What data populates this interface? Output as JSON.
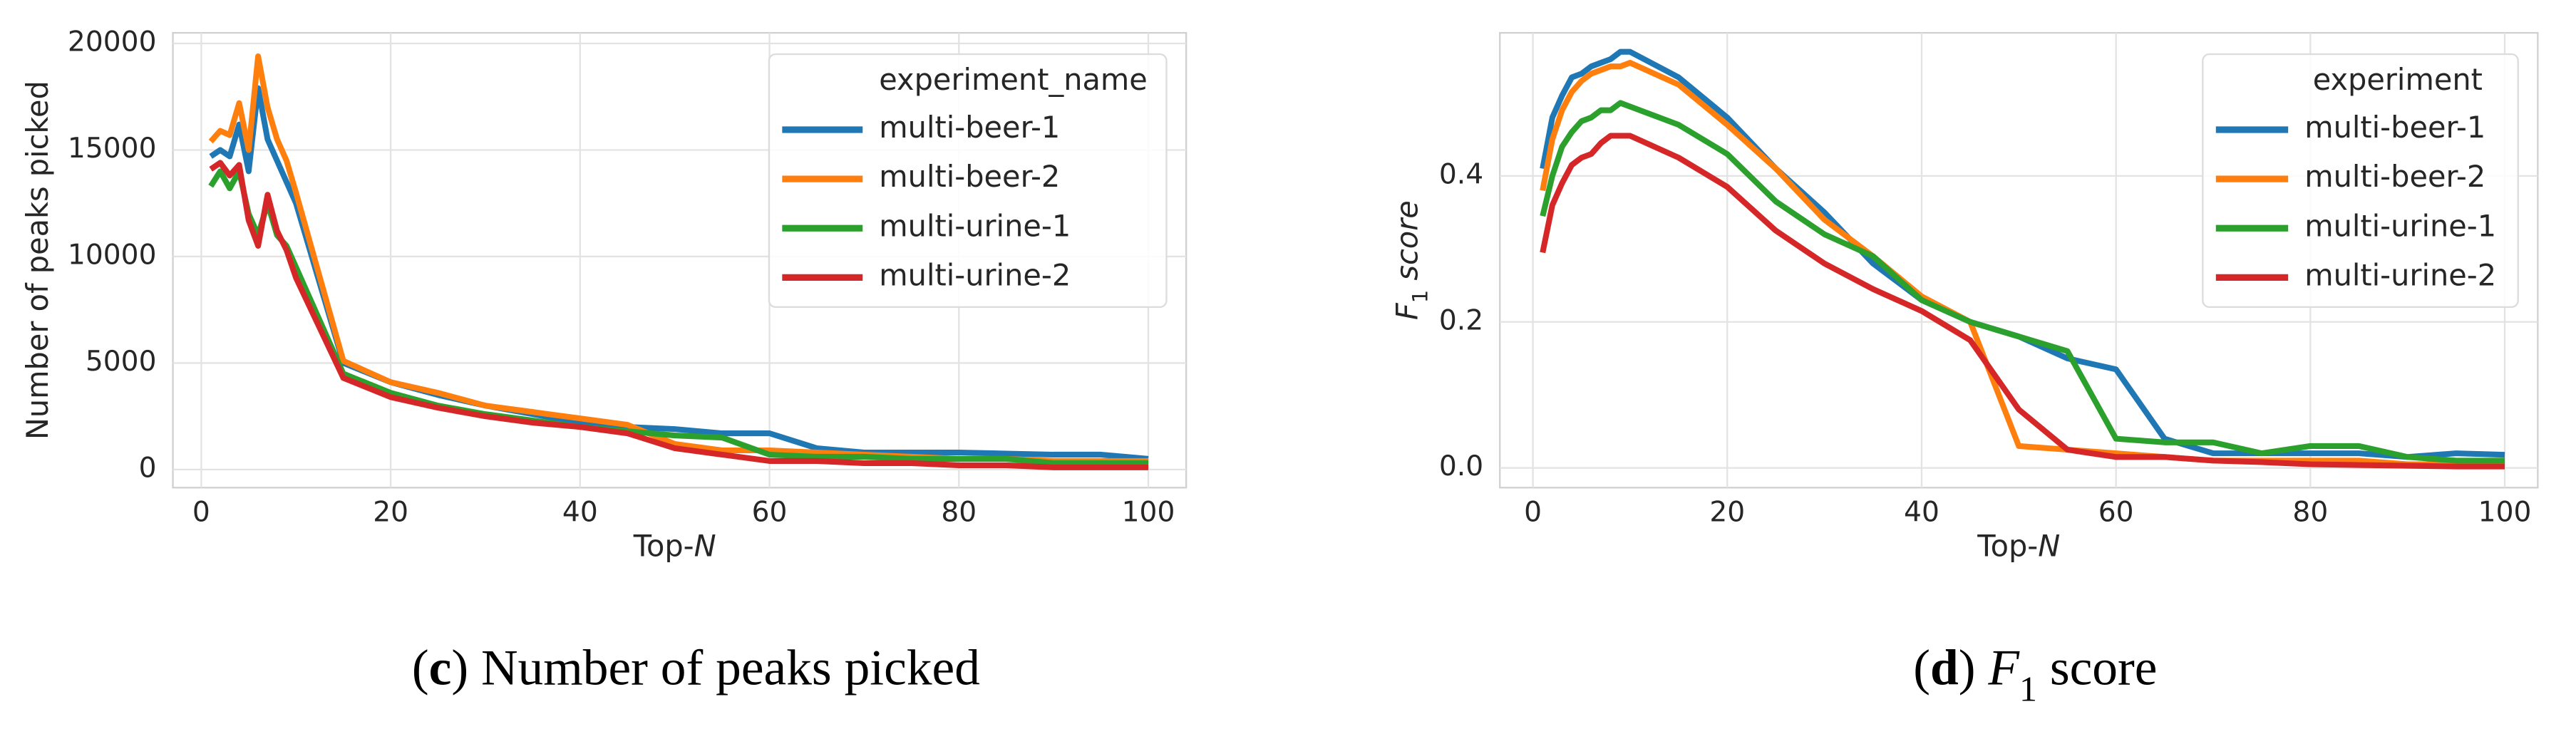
{
  "chart_data": [
    {
      "type": "line",
      "ylabel": [
        {
          "text": "Number of peaks picked"
        }
      ],
      "xlabel": [
        {
          "text": "Top-"
        },
        {
          "text": "N",
          "italic": true
        }
      ],
      "caption": [
        {
          "text": "("
        },
        {
          "text": "c",
          "bold": true
        },
        {
          "text": ") Number of peaks picked"
        }
      ],
      "legend_title": "experiment_name",
      "legend_loc": "upper right",
      "grid": true,
      "xlim": [
        -3,
        104
      ],
      "xticks": [
        0,
        20,
        40,
        60,
        80,
        100
      ],
      "ylim": [
        -850,
        20500
      ],
      "yticks": [
        0,
        5000,
        10000,
        15000,
        20000
      ],
      "x": [
        1,
        2,
        3,
        4,
        5,
        6,
        7,
        8,
        9,
        10,
        15,
        20,
        25,
        30,
        35,
        40,
        45,
        50,
        55,
        60,
        65,
        70,
        75,
        80,
        85,
        90,
        95,
        100
      ],
      "series": [
        {
          "name": "multi-beer-1",
          "color": "#1f77b4",
          "values": [
            14700,
            15000,
            14700,
            16200,
            14000,
            17900,
            15500,
            14500,
            13500,
            12500,
            5000,
            4100,
            3500,
            3000,
            2600,
            2200,
            2000,
            1900,
            1700,
            1700,
            1000,
            800,
            800,
            800,
            750,
            700,
            700,
            500
          ]
        },
        {
          "name": "multi-beer-2",
          "color": "#ff7f0e",
          "values": [
            15400,
            15900,
            15700,
            17200,
            15000,
            19400,
            17000,
            15500,
            14500,
            13000,
            5100,
            4100,
            3600,
            3000,
            2700,
            2400,
            2100,
            1200,
            900,
            900,
            800,
            700,
            600,
            500,
            500,
            400,
            400,
            400
          ]
        },
        {
          "name": "multi-urine-1",
          "color": "#2ca02c",
          "values": [
            13300,
            14000,
            13200,
            14000,
            12000,
            11000,
            12500,
            11000,
            10500,
            9500,
            4500,
            3600,
            3000,
            2600,
            2300,
            2000,
            1800,
            1600,
            1500,
            700,
            600,
            600,
            500,
            500,
            500,
            300,
            300,
            300
          ]
        },
        {
          "name": "multi-urine-2",
          "color": "#d62728",
          "values": [
            14100,
            14400,
            13800,
            14300,
            11700,
            10500,
            12900,
            11200,
            10300,
            9000,
            4300,
            3400,
            2900,
            2500,
            2200,
            2000,
            1700,
            1000,
            700,
            400,
            400,
            300,
            300,
            200,
            200,
            100,
            100,
            100
          ]
        }
      ]
    },
    {
      "type": "line",
      "ylabel": [
        {
          "text": "F",
          "italic": true
        },
        {
          "text": "1",
          "sub": true
        },
        {
          "text": " score",
          "italic": true
        }
      ],
      "xlabel": [
        {
          "text": "Top-"
        },
        {
          "text": "N",
          "italic": true
        }
      ],
      "caption": [
        {
          "text": "("
        },
        {
          "text": "d",
          "bold": true
        },
        {
          "text": ") "
        },
        {
          "text": "F",
          "italic": true
        },
        {
          "text": "1",
          "sub": true
        },
        {
          "text": " score"
        }
      ],
      "legend_title": "experiment",
      "legend_loc": "upper right",
      "grid": true,
      "xlim": [
        -3.4,
        103.4
      ],
      "xticks": [
        0,
        20,
        40,
        60,
        80,
        100
      ],
      "ylim": [
        -0.027,
        0.596
      ],
      "yticks": [
        {
          "value": 0,
          "label": "0.0"
        },
        {
          "value": 0.2,
          "label": "0.2"
        },
        {
          "value": 0.4,
          "label": "0.4"
        }
      ],
      "x": [
        1,
        2,
        3,
        4,
        5,
        6,
        7,
        8,
        9,
        10,
        15,
        20,
        25,
        30,
        35,
        40,
        45,
        50,
        55,
        60,
        65,
        70,
        75,
        80,
        85,
        90,
        95,
        100
      ],
      "series": [
        {
          "name": "multi-beer-1",
          "color": "#1f77b4",
          "values": [
            0.41,
            0.48,
            0.51,
            0.535,
            0.54,
            0.55,
            0.555,
            0.56,
            0.57,
            0.57,
            0.535,
            0.48,
            0.41,
            0.35,
            0.28,
            0.23,
            0.2,
            0.18,
            0.15,
            0.135,
            0.04,
            0.02,
            0.02,
            0.02,
            0.02,
            0.015,
            0.02,
            0.018
          ]
        },
        {
          "name": "multi-beer-2",
          "color": "#ff7f0e",
          "values": [
            0.38,
            0.45,
            0.49,
            0.515,
            0.53,
            0.54,
            0.545,
            0.55,
            0.55,
            0.555,
            0.525,
            0.47,
            0.41,
            0.34,
            0.29,
            0.235,
            0.2,
            0.03,
            0.025,
            0.02,
            0.015,
            0.01,
            0.01,
            0.01,
            0.01,
            0.005,
            0.005,
            0.005
          ]
        },
        {
          "name": "multi-urine-1",
          "color": "#2ca02c",
          "values": [
            0.345,
            0.4,
            0.44,
            0.46,
            0.475,
            0.48,
            0.49,
            0.49,
            0.5,
            0.495,
            0.47,
            0.43,
            0.365,
            0.32,
            0.29,
            0.23,
            0.2,
            0.18,
            0.16,
            0.04,
            0.035,
            0.035,
            0.02,
            0.03,
            0.03,
            0.015,
            0.01,
            0.01
          ]
        },
        {
          "name": "multi-urine-2",
          "color": "#d62728",
          "values": [
            0.295,
            0.36,
            0.39,
            0.415,
            0.425,
            0.43,
            0.445,
            0.455,
            0.455,
            0.455,
            0.425,
            0.385,
            0.325,
            0.28,
            0.245,
            0.215,
            0.175,
            0.08,
            0.025,
            0.015,
            0.015,
            0.01,
            0.008,
            0.005,
            0.004,
            0.003,
            0.002,
            0.002
          ]
        }
      ]
    }
  ]
}
